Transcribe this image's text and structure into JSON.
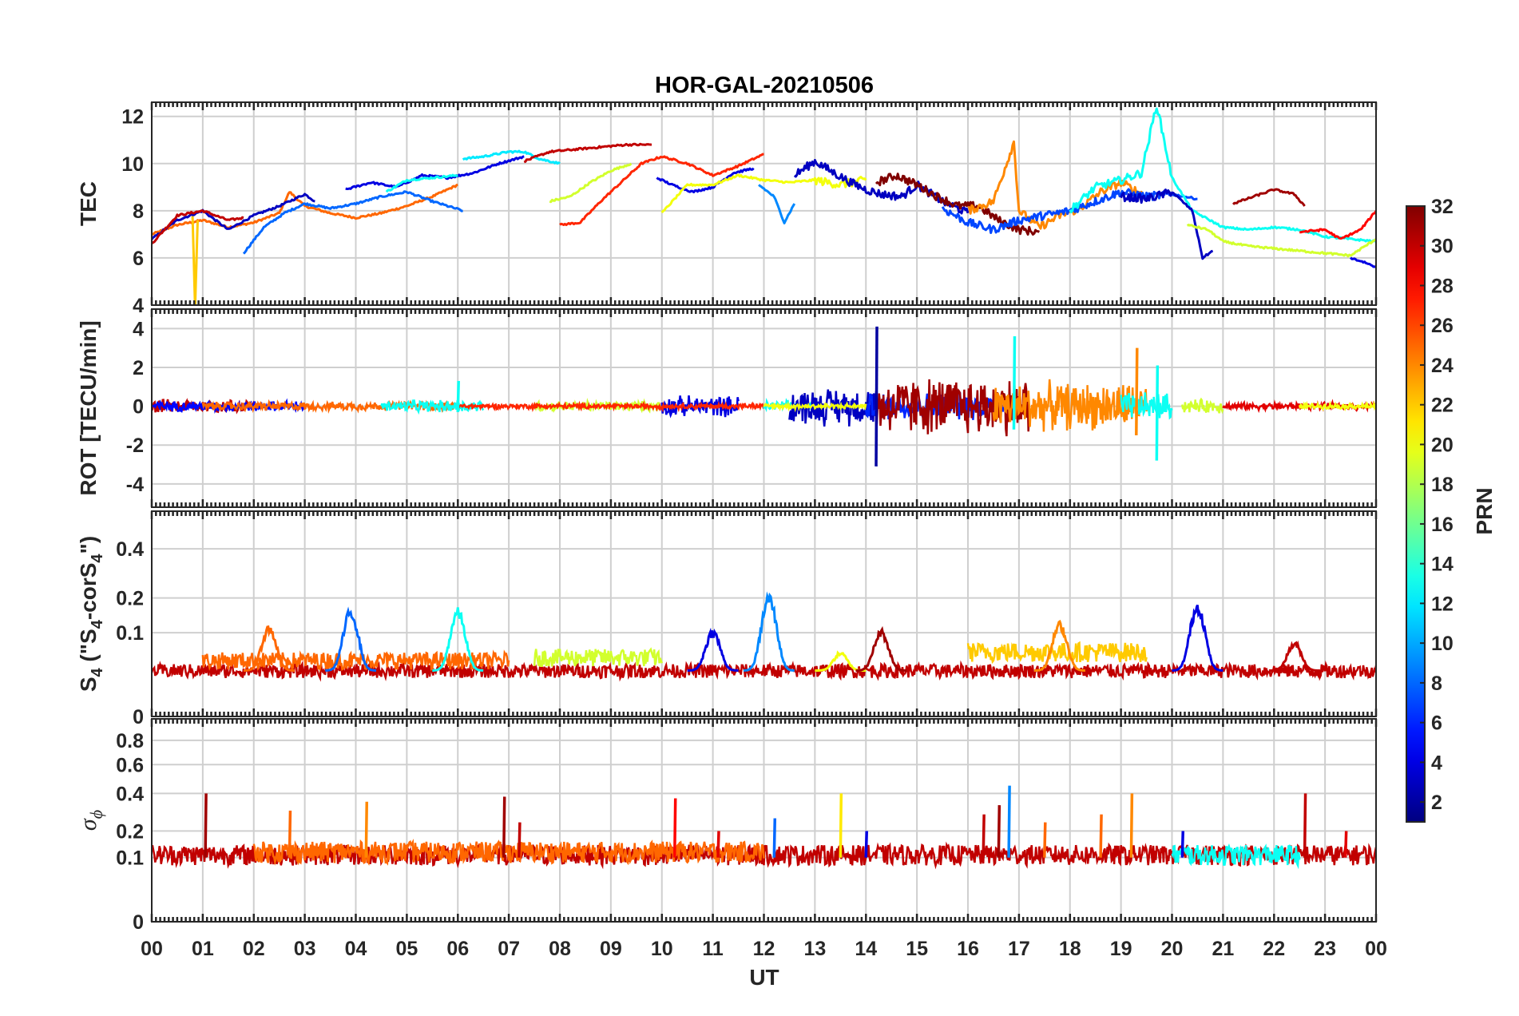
{
  "chart_data": {
    "type": "line",
    "title": "HOR-GAL-20210506",
    "xlabel": "UT",
    "x_ticks": [
      "00",
      "01",
      "02",
      "03",
      "04",
      "05",
      "06",
      "07",
      "08",
      "09",
      "10",
      "11",
      "12",
      "13",
      "14",
      "15",
      "16",
      "17",
      "18",
      "19",
      "20",
      "21",
      "22",
      "23",
      "00"
    ],
    "xlim": [
      0,
      24
    ],
    "grid": true,
    "colorbar": {
      "label": "PRN",
      "range": [
        1,
        32
      ],
      "ticks": [
        "2",
        "4",
        "6",
        "8",
        "10",
        "12",
        "14",
        "16",
        "18",
        "20",
        "22",
        "24",
        "26",
        "28",
        "30",
        "32"
      ],
      "colormap": "jet"
    },
    "panels": [
      {
        "ylabel": "TEC",
        "ylim": [
          4,
          12.6
        ],
        "yticks": [
          "4",
          "6",
          "8",
          "10",
          "12"
        ],
        "series": [
          {
            "prn": 25,
            "x": [
              0,
              0.5,
              1,
              1.5,
              2,
              2.5,
              2.7,
              3,
              3.5,
              4,
              4.5,
              5,
              5.5,
              6
            ],
            "y": [
              7.0,
              7.4,
              7.6,
              7.3,
              7.5,
              7.9,
              8.8,
              8.2,
              7.9,
              7.7,
              7.9,
              8.2,
              8.6,
              9.1
            ]
          },
          {
            "prn": 3,
            "x": [
              0,
              0.5,
              1,
              1.5,
              2,
              2.5,
              3,
              3.2
            ],
            "y": [
              6.8,
              7.6,
              8.0,
              7.2,
              7.8,
              8.2,
              8.7,
              8.4
            ]
          },
          {
            "prn": 22,
            "x": [
              0.8,
              0.85,
              0.9
            ],
            "y": [
              7.8,
              3.9,
              7.6
            ]
          },
          {
            "prn": 30,
            "x": [
              0,
              0.5,
              1,
              1.5,
              1.8
            ],
            "y": [
              6.6,
              7.8,
              8.0,
              7.6,
              7.7
            ]
          },
          {
            "prn": 8,
            "x": [
              1.8,
              2.2,
              2.6,
              3,
              3.5,
              4,
              4.5,
              5,
              5.5,
              6.1
            ],
            "y": [
              6.2,
              7.3,
              7.9,
              8.3,
              8.1,
              8.3,
              8.6,
              8.8,
              8.4,
              8.0
            ]
          },
          {
            "prn": 4,
            "x": [
              3.8,
              4.3,
              4.8,
              5.3,
              5.8,
              6.3,
              6.8,
              7.3
            ],
            "y": [
              8.9,
              9.2,
              9.0,
              9.5,
              9.4,
              9.6,
              10.0,
              10.3
            ]
          },
          {
            "prn": 13,
            "x": [
              4.6,
              5,
              5.5,
              6
            ],
            "y": [
              8.8,
              9.3,
              9.4,
              9.5
            ]
          },
          {
            "prn": 12,
            "x": [
              6.1,
              6.5,
              7,
              7.3,
              7.6,
              8
            ],
            "y": [
              10.2,
              10.3,
              10.5,
              10.5,
              10.2,
              10.0
            ]
          },
          {
            "prn": 30,
            "x": [
              7.3,
              7.8,
              8.3,
              8.8,
              9.3,
              9.8
            ],
            "y": [
              10.1,
              10.5,
              10.6,
              10.7,
              10.8,
              10.8
            ]
          },
          {
            "prn": 19,
            "x": [
              7.8,
              8.2,
              8.6,
              9,
              9.4
            ],
            "y": [
              8.4,
              8.6,
              9.2,
              9.7,
              10.0
            ]
          },
          {
            "prn": 27,
            "x": [
              8.0,
              8.4,
              8.8,
              9.2,
              9.6,
              10,
              10.5,
              11,
              11.5,
              12
            ],
            "y": [
              7.4,
              7.5,
              8.4,
              9.2,
              10.0,
              10.3,
              10.0,
              9.5,
              9.9,
              10.4
            ]
          },
          {
            "prn": 4,
            "x": [
              9.9,
              10.2,
              10.6,
              11,
              11.4,
              11.8
            ],
            "y": [
              9.4,
              9.1,
              8.8,
              9.0,
              9.6,
              9.8
            ]
          },
          {
            "prn": 20,
            "x": [
              10,
              10.5,
              11,
              11.5,
              12,
              12.5,
              13,
              13.5,
              14
            ],
            "y": [
              7.9,
              9.1,
              9.1,
              9.5,
              9.3,
              9.2,
              9.3,
              9.1,
              9.3
            ]
          },
          {
            "prn": 9,
            "x": [
              11.9,
              12.2,
              12.4,
              12.6
            ],
            "y": [
              9.1,
              8.6,
              7.5,
              8.3
            ]
          },
          {
            "prn": 3,
            "x": [
              12.6,
              13,
              13.3,
              13.7,
              14,
              14.3,
              14.7,
              15,
              15.5,
              16
            ],
            "y": [
              9.5,
              10.1,
              9.7,
              9.2,
              8.9,
              8.7,
              8.6,
              9.1,
              8.4,
              7.9
            ]
          },
          {
            "prn": 32,
            "x": [
              14.2,
              14.6,
              15,
              15.4,
              15.8,
              16.2,
              16.6,
              17,
              17.4
            ],
            "y": [
              9.2,
              9.5,
              9.1,
              8.6,
              8.2,
              8.2,
              7.6,
              7.2,
              7.1
            ]
          },
          {
            "prn": 24,
            "x": [
              16,
              16.5,
              16.9,
              17,
              17.4,
              17.8,
              18.2,
              18.6,
              19,
              19.5
            ],
            "y": [
              8.0,
              8.4,
              10.9,
              8.0,
              7.3,
              7.8,
              8.1,
              8.8,
              9.2,
              8.6
            ]
          },
          {
            "prn": 7,
            "x": [
              15.5,
              16,
              16.5,
              17,
              17.5,
              18,
              18.5,
              19,
              19.5,
              20,
              20.5
            ],
            "y": [
              8.1,
              7.5,
              7.2,
              7.6,
              7.8,
              8.0,
              8.4,
              8.8,
              8.6,
              8.7,
              8.5
            ]
          },
          {
            "prn": 13,
            "x": [
              18,
              18.5,
              19,
              19.4,
              19.7,
              20,
              20.4,
              21,
              21.5,
              22,
              22.5,
              23,
              23.5,
              24
            ],
            "y": [
              8.0,
              9.0,
              9.3,
              9.6,
              12.5,
              9.4,
              8.0,
              7.3,
              7.2,
              7.3,
              7.2,
              6.9,
              6.8,
              6.7
            ]
          },
          {
            "prn": 3,
            "x": [
              19,
              19.5,
              20,
              20.4,
              20.6,
              20.8
            ],
            "y": [
              8.6,
              8.5,
              8.8,
              8.0,
              6.0,
              6.3
            ]
          },
          {
            "prn": 19,
            "x": [
              20.3,
              20.7,
              21,
              21.5,
              22,
              22.5,
              23,
              23.5,
              24
            ],
            "y": [
              7.4,
              7.2,
              6.7,
              6.5,
              6.4,
              6.3,
              6.2,
              6.1,
              6.8
            ]
          },
          {
            "prn": 31,
            "x": [
              21.2,
              21.6,
              22,
              22.4,
              22.6
            ],
            "y": [
              8.3,
              8.6,
              8.9,
              8.7,
              8.2
            ]
          },
          {
            "prn": 28,
            "x": [
              22.5,
              23,
              23.3,
              23.7,
              24
            ],
            "y": [
              7.1,
              7.2,
              6.8,
              7.2,
              8.0
            ]
          },
          {
            "prn": 4,
            "x": [
              23.5,
              23.8,
              24
            ],
            "y": [
              6.0,
              5.8,
              5.6
            ]
          }
        ]
      },
      {
        "ylabel": "ROT [TECU/min]",
        "ylim": [
          -5.2,
          5
        ],
        "yticks": [
          "-4",
          "-2",
          "0",
          "2",
          "4"
        ],
        "noise": [
          {
            "prn": 30,
            "x0": 0,
            "x1": 2,
            "amp": 0.4
          },
          {
            "prn": 5,
            "x0": 0,
            "x1": 3,
            "amp": 0.3
          },
          {
            "prn": 25,
            "x0": 1,
            "x1": 6,
            "amp": 0.25
          },
          {
            "prn": 13,
            "x0": 4.5,
            "x1": 6.5,
            "amp": 0.35
          },
          {
            "prn": 19,
            "x0": 7.5,
            "x1": 10,
            "amp": 0.3
          },
          {
            "prn": 4,
            "x0": 10,
            "x1": 11.5,
            "amp": 0.6
          },
          {
            "prn": 27,
            "x0": 6,
            "x1": 12,
            "amp": 0.15
          },
          {
            "prn": 13,
            "x0": 12,
            "x1": 13,
            "amp": 0.3
          },
          {
            "prn": 3,
            "x0": 12.5,
            "x1": 14.2,
            "amp": 1.1
          },
          {
            "prn": 20,
            "x0": 12,
            "x1": 14,
            "amp": 0.15
          },
          {
            "prn": 6,
            "x0": 14,
            "x1": 17,
            "amp": 0.8
          },
          {
            "prn": 31,
            "x0": 14.2,
            "x1": 17.2,
            "amp": 1.7
          },
          {
            "prn": 24,
            "x0": 16.5,
            "x1": 19.5,
            "amp": 1.4
          },
          {
            "prn": 13,
            "x0": 19,
            "x1": 20,
            "amp": 0.8
          },
          {
            "prn": 19,
            "x0": 20.2,
            "x1": 21,
            "amp": 0.4
          },
          {
            "prn": 29,
            "x0": 21,
            "x1": 24,
            "amp": 0.2
          },
          {
            "prn": 20,
            "x0": 22.5,
            "x1": 24,
            "amp": 0.15
          }
        ],
        "spikes": [
          {
            "prn": 2,
            "x": 14.2,
            "min": -3.1,
            "max": 4.1
          },
          {
            "prn": 13,
            "x": 16.9,
            "min": -1.2,
            "max": 3.6
          },
          {
            "prn": 24,
            "x": 19.3,
            "min": -1.5,
            "max": 3.0
          },
          {
            "prn": 13,
            "x": 19.7,
            "min": -2.8,
            "max": 2.1
          },
          {
            "prn": 13,
            "x": 6.0,
            "min": -0.3,
            "max": 1.3
          }
        ]
      },
      {
        "ylabel": "S4 (\"S4-corS4\")",
        "ylim": [
          0,
          0.6
        ],
        "yticks": [
          "0",
          "0.1",
          "0.2",
          "0.4"
        ],
        "ytick_values": [
          0,
          0.1,
          0.2,
          0.4
        ],
        "scale": "sqrt",
        "base": [
          {
            "prn": 30,
            "x0": 0,
            "x1": 24,
            "level": 0.03
          },
          {
            "prn": 25,
            "x0": 1,
            "x1": 7,
            "level": 0.045
          },
          {
            "prn": 19,
            "x0": 7.5,
            "x1": 10,
            "level": 0.05
          },
          {
            "prn": 22,
            "x0": 16,
            "x1": 19.5,
            "level": 0.06
          }
        ],
        "bumps": [
          {
            "prn": 25,
            "x": 2.3,
            "peak": 0.12
          },
          {
            "prn": 8,
            "x": 3.9,
            "peak": 0.17
          },
          {
            "prn": 13,
            "x": 6.0,
            "peak": 0.17
          },
          {
            "prn": 4,
            "x": 11.0,
            "peak": 0.11
          },
          {
            "prn": 9,
            "x": 12.1,
            "peak": 0.22
          },
          {
            "prn": 20,
            "x": 13.5,
            "peak": 0.06
          },
          {
            "prn": 31,
            "x": 14.3,
            "peak": 0.11
          },
          {
            "prn": 24,
            "x": 17.8,
            "peak": 0.13
          },
          {
            "prn": 4,
            "x": 20.5,
            "peak": 0.19
          },
          {
            "prn": 30,
            "x": 22.4,
            "peak": 0.08
          }
        ]
      },
      {
        "ylabel": "σϕ",
        "ylim": [
          0,
          1
        ],
        "yticks": [
          "0",
          "0.1",
          "0.2",
          "0.4",
          "0.6",
          "0.8"
        ],
        "ytick_values": [
          0,
          0.1,
          0.2,
          0.4,
          0.6,
          0.8
        ],
        "scale": "sqrt",
        "base": [
          {
            "prn": 30,
            "x0": 0,
            "x1": 24,
            "level": 0.11
          },
          {
            "prn": 25,
            "x0": 2,
            "x1": 12,
            "level": 0.12
          },
          {
            "prn": 13,
            "x0": 20,
            "x1": 22.5,
            "level": 0.11
          }
        ],
        "spikes": [
          {
            "prn": 31,
            "x": 1.05,
            "peak": 0.4
          },
          {
            "prn": 25,
            "x": 2.7,
            "peak": 0.3
          },
          {
            "prn": 24,
            "x": 4.2,
            "peak": 0.35
          },
          {
            "prn": 31,
            "x": 6.9,
            "peak": 0.38
          },
          {
            "prn": 30,
            "x": 7.2,
            "peak": 0.24
          },
          {
            "prn": 28,
            "x": 10.25,
            "peak": 0.37
          },
          {
            "prn": 29,
            "x": 11.1,
            "peak": 0.2
          },
          {
            "prn": 8,
            "x": 12.2,
            "peak": 0.26
          },
          {
            "prn": 21,
            "x": 13.5,
            "peak": 0.4
          },
          {
            "prn": 4,
            "x": 14.0,
            "peak": 0.2
          },
          {
            "prn": 30,
            "x": 16.3,
            "peak": 0.28
          },
          {
            "prn": 31,
            "x": 16.6,
            "peak": 0.33
          },
          {
            "prn": 9,
            "x": 16.8,
            "peak": 0.45
          },
          {
            "prn": 25,
            "x": 17.5,
            "peak": 0.24
          },
          {
            "prn": 24,
            "x": 19.2,
            "peak": 0.4
          },
          {
            "prn": 25,
            "x": 18.6,
            "peak": 0.28
          },
          {
            "prn": 4,
            "x": 20.2,
            "peak": 0.2
          },
          {
            "prn": 30,
            "x": 22.6,
            "peak": 0.4
          },
          {
            "prn": 29,
            "x": 23.4,
            "peak": 0.2
          }
        ]
      }
    ]
  }
}
